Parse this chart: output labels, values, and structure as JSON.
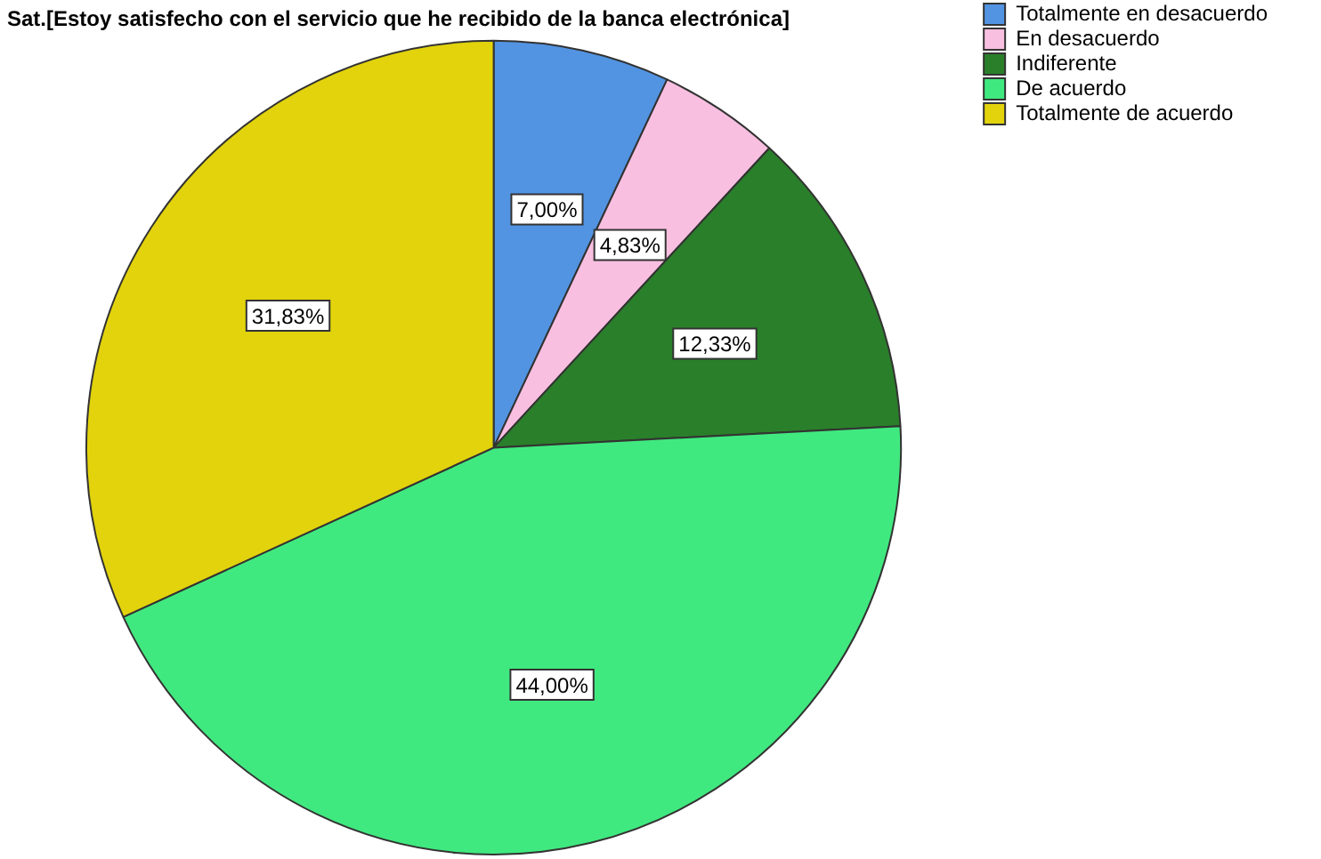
{
  "chart_data": {
    "type": "pie",
    "title": "Sat.[Estoy satisfecho con el servicio que he recibido de la banca electrónica]",
    "categories": [
      "Totalmente en desacuerdo",
      "En desacuerdo",
      "Indiferente",
      "De acuerdo",
      "Totalmente de acuerdo"
    ],
    "values": [
      7.0,
      4.83,
      12.33,
      44.0,
      31.83
    ],
    "value_labels": [
      "7,00%",
      "4,83%",
      "12,33%",
      "44,00%",
      "31,83%"
    ],
    "colors": [
      "#5294e2",
      "#f8bfe0",
      "#2a7f2a",
      "#40e97f",
      "#e2d30c"
    ],
    "legend": "top right"
  }
}
